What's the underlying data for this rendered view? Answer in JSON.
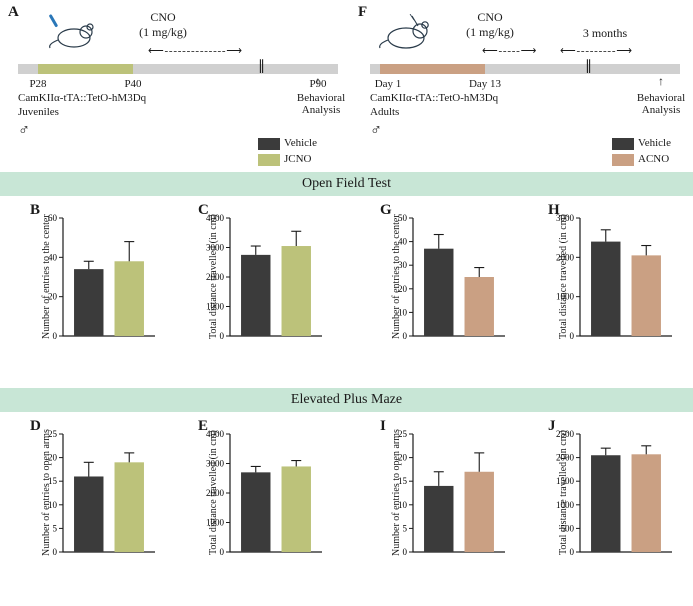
{
  "panel_labels": {
    "A": "A",
    "B": "B",
    "C": "C",
    "D": "D",
    "E": "E",
    "F": "F",
    "G": "G",
    "H": "H",
    "I": "I",
    "J": "J"
  },
  "timelineA": {
    "cno_text_line1": "CNO",
    "cno_text_line2": "(1 mg/kg)",
    "bar_color": "#d0d0d0",
    "fill_color": "#bcc27a",
    "ticks": [
      "P28",
      "P40",
      "P90"
    ],
    "behav_arrow": "↑",
    "behav_label": "Behavioral\nAnalysis",
    "strain": "CamKIIα-tTA::TetO-hM3Dq",
    "group": "Juveniles",
    "male": "♂"
  },
  "timelineF": {
    "cno_text_line1": "CNO",
    "cno_text_line2": "(1 mg/kg)",
    "three_months": "3 months",
    "bar_color": "#d0d0d0",
    "fill_color": "#caa083",
    "ticks": [
      "Day 1",
      "Day 13"
    ],
    "behav_arrow": "↑",
    "behav_label": "Behavioral\nAnalysis",
    "strain": "CamKIIα-tTA::TetO-hM3Dq",
    "group": "Adults",
    "male": "♂"
  },
  "legend_left": {
    "items": [
      {
        "color": "#3b3b3b",
        "label": "Vehicle"
      },
      {
        "color": "#bcc27a",
        "label": "JCNO"
      }
    ]
  },
  "legend_right": {
    "items": [
      {
        "color": "#3b3b3b",
        "label": "Vehicle"
      },
      {
        "color": "#caa083",
        "label": "ACNO"
      }
    ]
  },
  "sections": {
    "oft": "Open Field Test",
    "epm": "Elevated Plus Maze",
    "band_color": "#c8e6d6"
  },
  "charts": {
    "B": {
      "type": "bar",
      "y_title": "Number of entries to the center",
      "ylim": [
        0,
        60
      ],
      "ytick_step": 20,
      "bars": [
        {
          "value": 34,
          "err": 4,
          "color": "#3b3b3b"
        },
        {
          "value": 38,
          "err": 10,
          "color": "#bcc27a"
        }
      ]
    },
    "C": {
      "type": "bar",
      "y_title": "Total distance travelled (in cm)",
      "ylim": [
        0,
        4000
      ],
      "ytick_step": 1000,
      "bars": [
        {
          "value": 2750,
          "err": 300,
          "color": "#3b3b3b"
        },
        {
          "value": 3050,
          "err": 500,
          "color": "#bcc27a"
        }
      ]
    },
    "G": {
      "type": "bar",
      "y_title": "Number of entries to the center",
      "ylim": [
        0,
        50
      ],
      "ytick_step": 10,
      "bars": [
        {
          "value": 37,
          "err": 6,
          "color": "#3b3b3b"
        },
        {
          "value": 25,
          "err": 4,
          "color": "#caa083"
        }
      ]
    },
    "H": {
      "type": "bar",
      "y_title": "Total distance travelled (in cm)",
      "ylim": [
        0,
        3000
      ],
      "ytick_step": 1000,
      "bars": [
        {
          "value": 2400,
          "err": 300,
          "color": "#3b3b3b"
        },
        {
          "value": 2050,
          "err": 250,
          "color": "#caa083"
        }
      ]
    },
    "D": {
      "type": "bar",
      "y_title": "Number of entries to open arms",
      "ylim": [
        0,
        25
      ],
      "ytick_step": 5,
      "bars": [
        {
          "value": 16,
          "err": 3,
          "color": "#3b3b3b"
        },
        {
          "value": 19,
          "err": 2,
          "color": "#bcc27a"
        }
      ]
    },
    "E": {
      "type": "bar",
      "y_title": "Total distance travelled (in cm)",
      "ylim": [
        0,
        4000
      ],
      "ytick_step": 1000,
      "bars": [
        {
          "value": 2700,
          "err": 200,
          "color": "#3b3b3b"
        },
        {
          "value": 2900,
          "err": 200,
          "color": "#bcc27a"
        }
      ]
    },
    "I": {
      "type": "bar",
      "y_title": "Number of entries to open arms",
      "ylim": [
        0,
        25
      ],
      "ytick_step": 5,
      "bars": [
        {
          "value": 14,
          "err": 3,
          "color": "#3b3b3b"
        },
        {
          "value": 17,
          "err": 4,
          "color": "#caa083"
        }
      ]
    },
    "J": {
      "type": "bar",
      "y_title": "Total distance travelled (in cm)",
      "ylim": [
        0,
        2500
      ],
      "ytick_step": 500,
      "bars": [
        {
          "value": 2050,
          "err": 150,
          "color": "#3b3b3b"
        },
        {
          "value": 2070,
          "err": 180,
          "color": "#caa083"
        }
      ]
    }
  },
  "chart_style": {
    "axis_color": "#1a1a1a",
    "bar_width": 0.32,
    "bar_gap": 0.12,
    "err_cap": 5,
    "tick_fontsize": 9
  }
}
